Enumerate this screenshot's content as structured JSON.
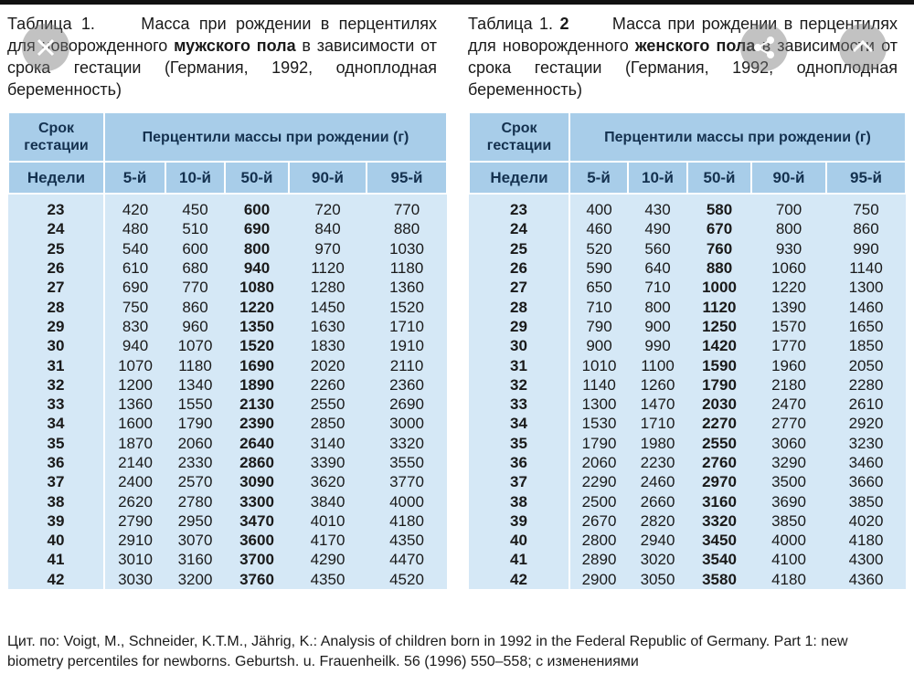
{
  "left": {
    "caption": {
      "label": "Таблица 1.",
      "text_start": "Масса при рождении в перцентилях для новорожденного",
      "bold": "мужского пола",
      "text_end": "в зависимости от срока гестации (Германия, 1992, одноплодная беременность)"
    },
    "table": {
      "term": "Срок гестации",
      "percentiles": "Перцентили массы при рождении (г)",
      "weeks": "Недели",
      "columns": [
        "5-й",
        "10-й",
        "50-й",
        "90-й",
        "95-й"
      ],
      "rows": [
        [
          23,
          420,
          450,
          600,
          720,
          770
        ],
        [
          24,
          480,
          510,
          690,
          840,
          880
        ],
        [
          25,
          540,
          600,
          800,
          970,
          1030
        ],
        [
          26,
          610,
          680,
          940,
          1120,
          1180
        ],
        [
          27,
          690,
          770,
          1080,
          1280,
          1360
        ],
        [
          28,
          750,
          860,
          1220,
          1450,
          1520
        ],
        [
          29,
          830,
          960,
          1350,
          1630,
          1710
        ],
        [
          30,
          940,
          1070,
          1520,
          1830,
          1910
        ],
        [
          31,
          1070,
          1180,
          1690,
          2020,
          2110
        ],
        [
          32,
          1200,
          1340,
          1890,
          2260,
          2360
        ],
        [
          33,
          1360,
          1550,
          2130,
          2550,
          2690
        ],
        [
          34,
          1600,
          1790,
          2390,
          2850,
          3000
        ],
        [
          35,
          1870,
          2060,
          2640,
          3140,
          3320
        ],
        [
          36,
          2140,
          2330,
          2860,
          3390,
          3550
        ],
        [
          37,
          2400,
          2570,
          3090,
          3620,
          3770
        ],
        [
          38,
          2620,
          2780,
          3300,
          3840,
          4000
        ],
        [
          39,
          2790,
          2950,
          3470,
          4010,
          4180
        ],
        [
          40,
          2910,
          3070,
          3600,
          4170,
          4350
        ],
        [
          41,
          3010,
          3160,
          3700,
          4290,
          4470
        ],
        [
          42,
          3030,
          3200,
          3760,
          4350,
          4520
        ]
      ]
    }
  },
  "right": {
    "caption": {
      "label": "Таблица 1.",
      "label_number": "2",
      "text_start": "Масса при рождении в перцентилях для новорожденного",
      "bold": "женского пола",
      "text_end": "в зависимости от срока гестации (Германия, 1992, одноплодная беременность)"
    },
    "table": {
      "term": "Срок гестации",
      "percentiles": "Перцентили массы при рождении (г)",
      "weeks": "Недели",
      "columns": [
        "5-й",
        "10-й",
        "50-й",
        "90-й",
        "95-й"
      ],
      "rows": [
        [
          23,
          400,
          430,
          580,
          700,
          750
        ],
        [
          24,
          460,
          490,
          670,
          800,
          860
        ],
        [
          25,
          520,
          560,
          760,
          930,
          990
        ],
        [
          26,
          590,
          640,
          880,
          1060,
          1140
        ],
        [
          27,
          650,
          710,
          1000,
          1220,
          1300
        ],
        [
          28,
          710,
          800,
          1120,
          1390,
          1460
        ],
        [
          29,
          790,
          900,
          1250,
          1570,
          1650
        ],
        [
          30,
          900,
          990,
          1420,
          1770,
          1850
        ],
        [
          31,
          1010,
          1100,
          1590,
          1960,
          2050
        ],
        [
          32,
          1140,
          1260,
          1790,
          2180,
          2280
        ],
        [
          33,
          1300,
          1470,
          2030,
          2470,
          2610
        ],
        [
          34,
          1530,
          1710,
          2270,
          2770,
          2920
        ],
        [
          35,
          1790,
          1980,
          2550,
          3060,
          3230
        ],
        [
          36,
          2060,
          2230,
          2760,
          3290,
          3460
        ],
        [
          37,
          2290,
          2460,
          2970,
          3500,
          3660
        ],
        [
          38,
          2500,
          2660,
          3160,
          3690,
          3850
        ],
        [
          39,
          2670,
          2820,
          3320,
          3850,
          4020
        ],
        [
          40,
          2800,
          2940,
          3450,
          4000,
          4180
        ],
        [
          41,
          2890,
          3020,
          3540,
          4100,
          4300
        ],
        [
          42,
          2900,
          3050,
          3580,
          4180,
          4360
        ]
      ]
    }
  },
  "footnote": "Цит. по: Voigt, M., Schneider, K.T.M., Jährig, K.: Analysis of children born in 1992 in the Federal Republic of Germany. Part 1: new biometry percentiles for newborns. Geburtsh. u. Frauenheilk. 56 (1996) 550–558; с изменениями"
}
